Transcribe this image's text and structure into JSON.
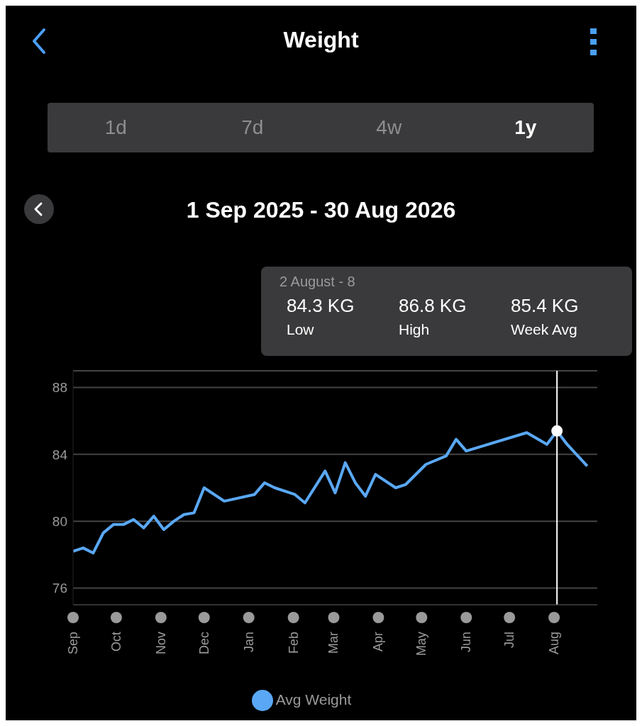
{
  "chart_data": {
    "type": "line",
    "title": "Weight",
    "subtitle": "1 Sep 2025 - 30 Aug 2026",
    "annotations": [
      "1d",
      "7d",
      "4w",
      "1y",
      "2 August - 8",
      "84.3 KG",
      "86.8 KG",
      "85.4 KG",
      "Low",
      "High",
      "Week Avg"
    ],
    "x": [
      "2025-09-01",
      "2025-09-08",
      "2025-09-15",
      "2025-09-22",
      "2025-09-29",
      "2025-10-06",
      "2025-10-13",
      "2025-10-20",
      "2025-10-27",
      "2025-11-03",
      "2025-11-10",
      "2025-11-17",
      "2025-11-24",
      "2025-12-01",
      "2025-12-15",
      "2026-01-05",
      "2026-01-12",
      "2026-01-19",
      "2026-02-02",
      "2026-02-09",
      "2026-02-23",
      "2026-03-02",
      "2026-03-09",
      "2026-03-16",
      "2026-03-23",
      "2026-03-30",
      "2026-04-13",
      "2026-04-20",
      "2026-05-04",
      "2026-05-18",
      "2026-05-25",
      "2026-06-01",
      "2026-07-13",
      "2026-07-27",
      "2026-08-03",
      "2026-08-10",
      "2026-08-24"
    ],
    "series": [
      {
        "name": "Avg Weight",
        "color": "#5aa8f5",
        "values": [
          78.2,
          78.4,
          78.1,
          79.3,
          79.8,
          79.8,
          80.1,
          79.6,
          80.3,
          79.5,
          80.0,
          80.4,
          80.5,
          82.0,
          81.2,
          81.6,
          82.3,
          82.0,
          81.6,
          81.1,
          83.0,
          81.7,
          83.5,
          82.3,
          81.5,
          82.8,
          82.0,
          82.2,
          83.4,
          83.9,
          84.9,
          84.2,
          85.3,
          84.6,
          85.4,
          84.6,
          83.3
        ]
      }
    ],
    "xlim": [
      "2025-09-01",
      "2026-08-31"
    ],
    "xticks": [
      {
        "value": "2025-09-01",
        "label": "Sep"
      },
      {
        "value": "2025-10-01",
        "label": "Oct"
      },
      {
        "value": "2025-11-01",
        "label": "Nov"
      },
      {
        "value": "2025-12-01",
        "label": "Dec"
      },
      {
        "value": "2026-01-01",
        "label": "Jan"
      },
      {
        "value": "2026-02-01",
        "label": "Feb"
      },
      {
        "value": "2026-03-01",
        "label": "Mar"
      },
      {
        "value": "2026-04-01",
        "label": "Apr"
      },
      {
        "value": "2026-05-01",
        "label": "May"
      },
      {
        "value": "2026-06-01",
        "label": "Jun"
      },
      {
        "value": "2026-07-01",
        "label": "Jul"
      },
      {
        "value": "2026-08-01",
        "label": "Aug"
      }
    ],
    "ylim": [
      75,
      89
    ],
    "yticks": [
      76,
      80,
      84,
      88
    ],
    "grid": "y",
    "legend": "bottom",
    "marker": "none",
    "ref_lines": [
      {
        "axis": "x",
        "value": "2026-08-03",
        "color": "#ffffff"
      }
    ]
  }
}
